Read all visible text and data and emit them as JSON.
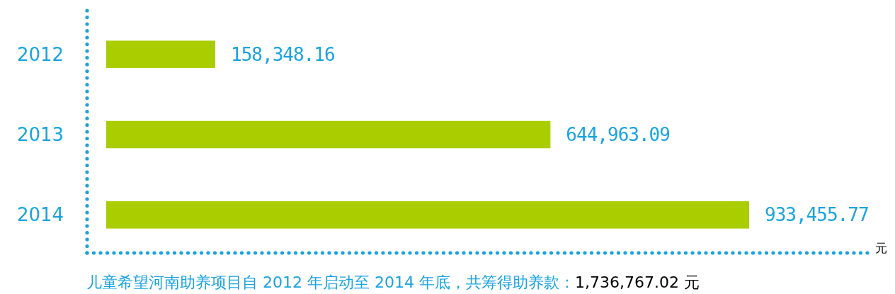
{
  "chart_data": {
    "type": "bar",
    "orientation": "horizontal",
    "categories": [
      "2012",
      "2013",
      "2014"
    ],
    "values": [
      158348.16,
      644963.09,
      933455.77
    ],
    "color": "#aacd00",
    "data_labels": true,
    "value_labels": [
      "158,348.16",
      "644,963.09",
      "933,455.77"
    ],
    "annotations": [
      "元",
      "儿童希望河南助养项目自 2012 年启动至 2014 年底，共筹得助养款：",
      "1,736,767.02 元"
    ]
  }
}
